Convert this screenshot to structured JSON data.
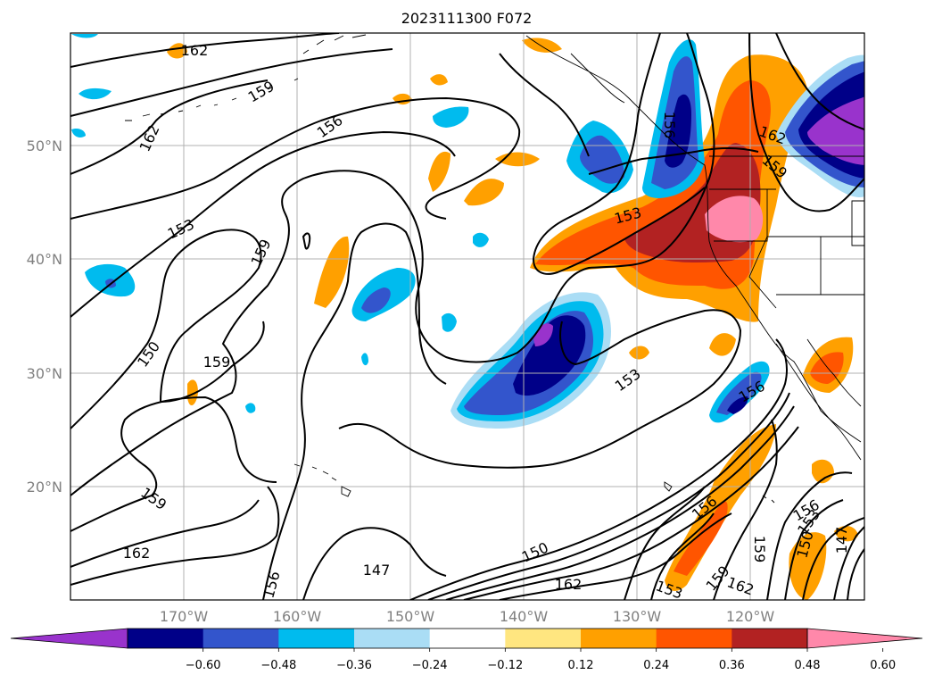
{
  "title": "2023111300 F072",
  "map": {
    "latitude_labels": [
      "50°N",
      "40°N",
      "30°N",
      "20°N"
    ],
    "longitude_labels": [
      "170°W",
      "160°W",
      "150°W",
      "140°W",
      "130°W",
      "120°W"
    ],
    "contour_labels": [
      "162",
      "159",
      "162",
      "156",
      "153",
      "159",
      "150",
      "159",
      "153",
      "153",
      "162",
      "159",
      "156",
      "159",
      "162",
      "147",
      "150",
      "162",
      "156",
      "159",
      "162",
      "156",
      "153",
      "150",
      "147",
      "156",
      "153",
      "159",
      "156"
    ],
    "colors": {
      "neg_060_plus": "#9933cc",
      "neg_048_060": "#000088",
      "neg_036_048": "#3355cc",
      "neg_024_036": "#00bbee",
      "neg_012_024": "#aaddf5",
      "neutral": "#ffffff",
      "pos_012_024": "#ffe680",
      "pos_024_036": "#ffa000",
      "pos_036_048": "#ff5500",
      "pos_048_060": "#b22222",
      "pos_060_plus": "#ff88aa"
    }
  },
  "colorbar": {
    "ticks": [
      "−0.60",
      "−0.48",
      "−0.36",
      "−0.24",
      "−0.12",
      "0.12",
      "0.24",
      "0.36",
      "0.48",
      "0.60"
    ],
    "colors": [
      "#9933cc",
      "#000088",
      "#3355cc",
      "#00bbee",
      "#aaddf5",
      "#ffffff",
      "#ffe680",
      "#ffa000",
      "#ff5500",
      "#b22222",
      "#ff88aa"
    ]
  }
}
